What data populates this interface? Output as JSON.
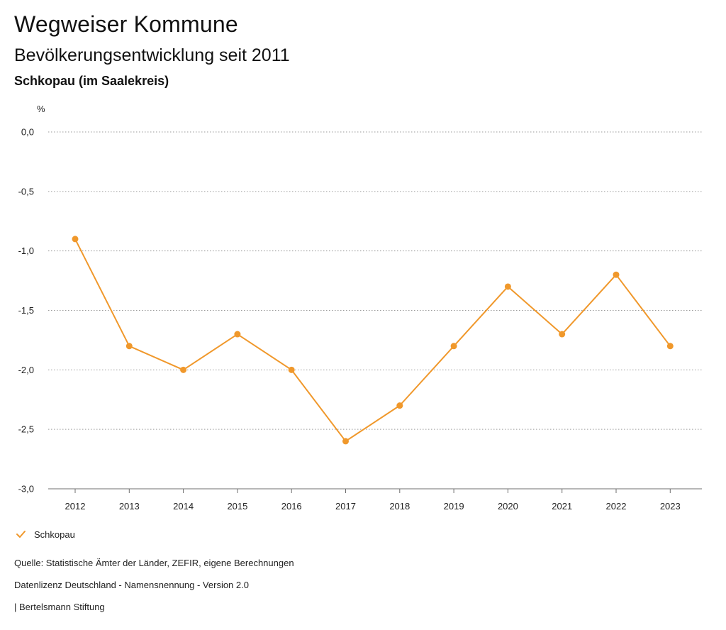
{
  "header": {
    "title": "Wegweiser Kommune",
    "subtitle": "Bevölkerungsentwicklung seit 2011",
    "region": "Schkopau (im Saalekreis)"
  },
  "colors": {
    "series": "#f0982b",
    "grid": "#9a9a9a",
    "text": "#222222"
  },
  "chart_data": {
    "type": "line",
    "title": "Bevölkerungsentwicklung seit 2011",
    "subtitle": "Schkopau (im Saalekreis)",
    "xlabel": "",
    "ylabel": "%",
    "ylim": [
      -3.0,
      0.0
    ],
    "yticks": [
      0.0,
      -0.5,
      -1.0,
      -1.5,
      -2.0,
      -2.5,
      -3.0
    ],
    "ytick_labels": [
      "0,0",
      "-0,5",
      "-1,0",
      "-1,5",
      "-2,0",
      "-2,5",
      "-3,0"
    ],
    "categories": [
      "2012",
      "2013",
      "2014",
      "2015",
      "2016",
      "2017",
      "2018",
      "2019",
      "2020",
      "2021",
      "2022",
      "2023"
    ],
    "series": [
      {
        "name": "Schkopau",
        "values": [
          -0.9,
          -1.8,
          -2.0,
          -1.7,
          -2.0,
          -2.6,
          -2.3,
          -1.8,
          -1.3,
          -1.7,
          -1.2,
          -1.8
        ]
      }
    ],
    "grid": true,
    "legend": "bottom-left"
  },
  "legend": {
    "label": "Schkopau",
    "icon": "check-icon"
  },
  "footer": {
    "source": "Quelle: Statistische Ämter der Länder, ZEFIR, eigene Berechnungen",
    "license": "Datenlizenz Deutschland - Namensnennung - Version 2.0",
    "publisher": "| Bertelsmann Stiftung"
  }
}
